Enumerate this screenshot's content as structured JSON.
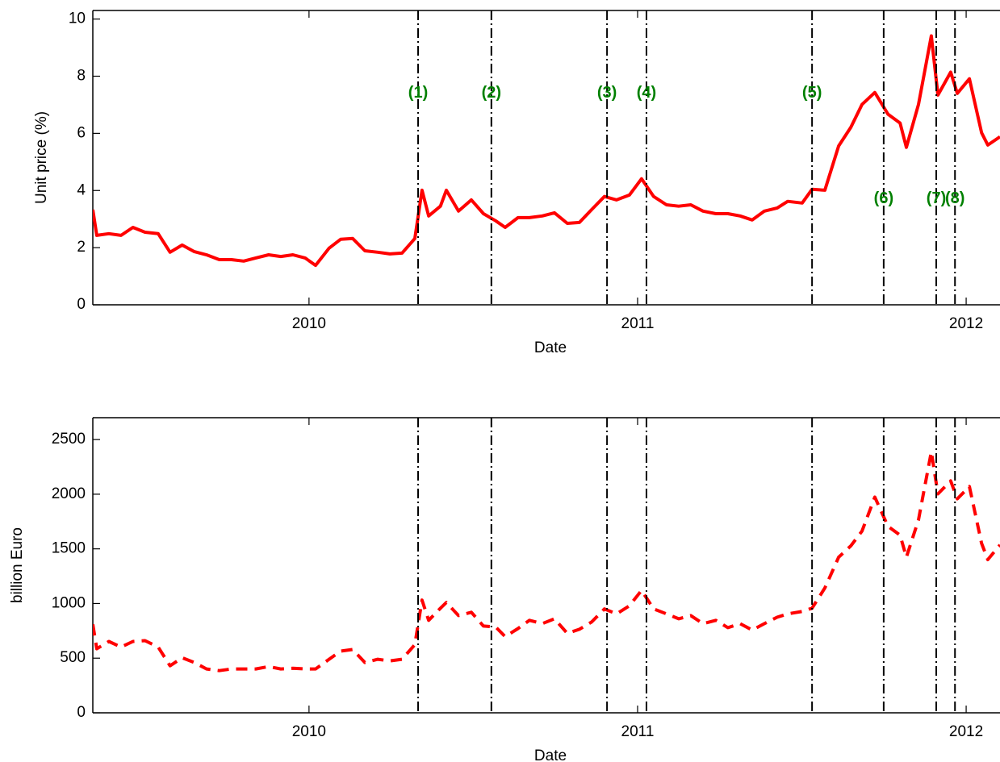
{
  "chart_data": [
    {
      "type": "line",
      "x_label": "Date",
      "y_label": "Unit price (%)",
      "xlim": [
        2009.342,
        2012.103
      ],
      "xticks": [
        2010,
        2011,
        2012
      ],
      "ylim": [
        0,
        10.3
      ],
      "yticks": [
        0,
        2,
        4,
        6,
        8,
        10
      ],
      "grid": false,
      "x": [
        2009.342,
        2009.354,
        2009.391,
        2009.428,
        2009.464,
        2009.501,
        2009.541,
        2009.577,
        2009.614,
        2009.651,
        2009.688,
        2009.727,
        2009.764,
        2009.801,
        2009.838,
        2009.877,
        2009.914,
        2009.951,
        2009.988,
        2010.02,
        2010.061,
        2010.096,
        2010.133,
        2010.17,
        2010.209,
        2010.246,
        2010.283,
        2010.322,
        2010.344,
        2010.364,
        2010.4,
        2010.418,
        2010.455,
        2010.494,
        2010.531,
        2010.568,
        2010.597,
        2010.636,
        2010.671,
        2010.71,
        2010.747,
        2010.786,
        2010.823,
        2010.86,
        2010.899,
        2010.936,
        2010.975,
        2011.012,
        2011.049,
        2011.088,
        2011.125,
        2011.162,
        2011.199,
        2011.238,
        2011.275,
        2011.312,
        2011.349,
        2011.386,
        2011.425,
        2011.457,
        2011.501,
        2011.531,
        2011.57,
        2011.612,
        2011.649,
        2011.683,
        2011.722,
        2011.762,
        2011.799,
        2011.818,
        2011.855,
        2011.894,
        2011.914,
        2011.953,
        2011.973,
        2012.01,
        2012.047,
        2012.066,
        2012.103
      ],
      "series": [
        {
          "color": "#ff0000",
          "line_style": "solid",
          "values": [
            3.33,
            2.43,
            2.49,
            2.43,
            2.71,
            2.54,
            2.49,
            1.84,
            2.09,
            1.86,
            1.75,
            1.58,
            1.58,
            1.53,
            1.64,
            1.75,
            1.69,
            1.75,
            1.64,
            1.38,
            1.98,
            2.29,
            2.32,
            1.89,
            1.84,
            1.78,
            1.81,
            2.32,
            4.01,
            3.11,
            3.45,
            4.01,
            3.28,
            3.67,
            3.19,
            2.94,
            2.71,
            3.05,
            3.05,
            3.11,
            3.22,
            2.85,
            2.88,
            3.33,
            3.79,
            3.67,
            3.84,
            4.41,
            3.79,
            3.5,
            3.45,
            3.5,
            3.28,
            3.19,
            3.19,
            3.11,
            2.97,
            3.28,
            3.39,
            3.62,
            3.56,
            4.04,
            4.01,
            5.56,
            6.21,
            7.01,
            7.43,
            6.67,
            6.36,
            5.51,
            7.01,
            9.41,
            7.34,
            8.14,
            7.4,
            7.91,
            6.02,
            5.59,
            5.88
          ]
        }
      ],
      "event_color": "#008000",
      "events": [
        {
          "x": 2010.332,
          "label": "(1)",
          "label_y": 7.4
        },
        {
          "x": 2010.555,
          "label": "(2)",
          "label_y": 7.4
        },
        {
          "x": 2010.907,
          "label": "(3)",
          "label_y": 7.4
        },
        {
          "x": 2011.027,
          "label": "(4)",
          "label_y": 7.4
        },
        {
          "x": 2011.531,
          "label": "(5)",
          "label_y": 7.4
        },
        {
          "x": 2011.749,
          "label": "(6)",
          "label_y": 3.7
        },
        {
          "x": 2011.909,
          "label": "(7)",
          "label_y": 3.7
        },
        {
          "x": 2011.966,
          "label": "(8)",
          "label_y": 3.7
        }
      ]
    },
    {
      "type": "line",
      "x_label": "Date",
      "y_label": "billion Euro",
      "xlim": [
        2009.342,
        2012.103
      ],
      "xticks": [
        2010,
        2011,
        2012
      ],
      "ylim": [
        0,
        2700
      ],
      "yticks": [
        0,
        500,
        1000,
        1500,
        2000,
        2500
      ],
      "grid": false,
      "x": [
        2009.342,
        2009.354,
        2009.391,
        2009.428,
        2009.464,
        2009.501,
        2009.541,
        2009.577,
        2009.614,
        2009.651,
        2009.688,
        2009.727,
        2009.764,
        2009.801,
        2009.838,
        2009.877,
        2009.914,
        2009.951,
        2009.988,
        2010.02,
        2010.061,
        2010.096,
        2010.133,
        2010.17,
        2010.209,
        2010.246,
        2010.283,
        2010.322,
        2010.344,
        2010.364,
        2010.4,
        2010.418,
        2010.455,
        2010.494,
        2010.531,
        2010.568,
        2010.597,
        2010.636,
        2010.671,
        2010.71,
        2010.747,
        2010.786,
        2010.823,
        2010.86,
        2010.899,
        2010.936,
        2010.975,
        2011.012,
        2011.049,
        2011.088,
        2011.125,
        2011.162,
        2011.199,
        2011.238,
        2011.275,
        2011.312,
        2011.349,
        2011.386,
        2011.425,
        2011.457,
        2011.501,
        2011.531,
        2011.57,
        2011.612,
        2011.649,
        2011.683,
        2011.722,
        2011.762,
        2011.799,
        2011.818,
        2011.855,
        2011.894,
        2011.914,
        2011.953,
        2011.973,
        2012.01,
        2012.047,
        2012.066,
        2012.103
      ],
      "series": [
        {
          "color": "#ff0000",
          "line_style": "dashed",
          "values": [
            809,
            586,
            653,
            601,
            653,
            660,
            601,
            430,
            504,
            460,
            401,
            386,
            401,
            401,
            401,
            423,
            401,
            408,
            401,
            401,
            490,
            564,
            579,
            460,
            490,
            475,
            490,
            623,
            1031,
            846,
            957,
            1009,
            890,
            920,
            794,
            786,
            697,
            771,
            846,
            816,
            860,
            727,
            764,
            831,
            950,
            905,
            979,
            1120,
            950,
            905,
            860,
            890,
            816,
            846,
            779,
            816,
            757,
            816,
            875,
            905,
            927,
            957,
            1142,
            1424,
            1528,
            1662,
            1973,
            1706,
            1625,
            1424,
            1765,
            2389,
            2003,
            2122,
            1958,
            2070,
            1550,
            1402,
            1536
          ]
        }
      ],
      "events": [
        {
          "x": 2010.332
        },
        {
          "x": 2010.555
        },
        {
          "x": 2010.907
        },
        {
          "x": 2011.027
        },
        {
          "x": 2011.531
        },
        {
          "x": 2011.749
        },
        {
          "x": 2011.909
        },
        {
          "x": 2011.966
        }
      ]
    }
  ]
}
